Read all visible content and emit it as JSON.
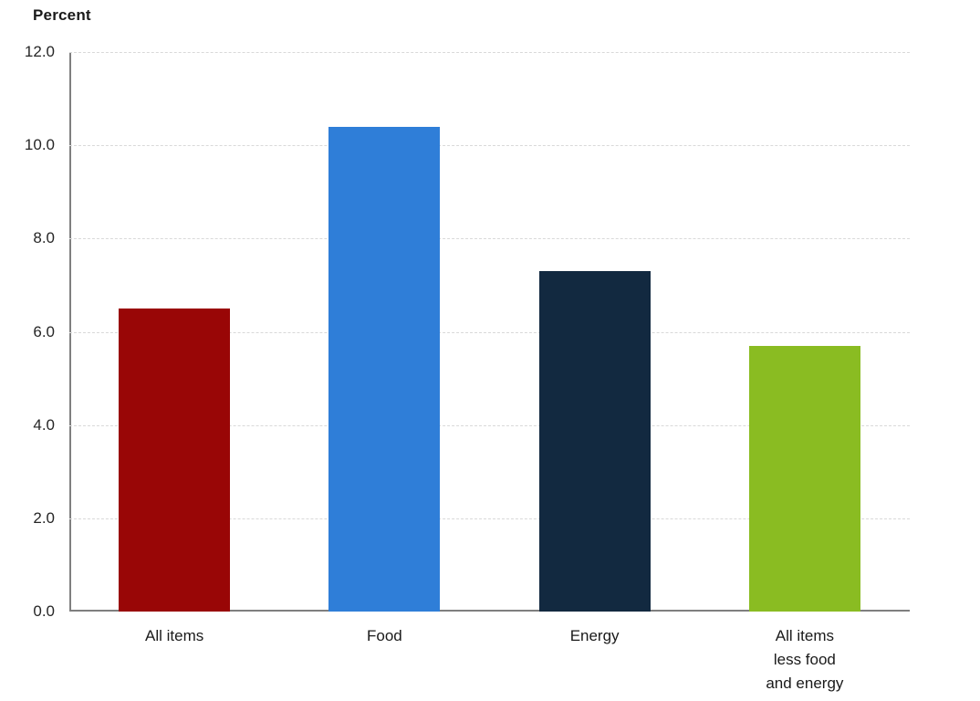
{
  "chart_data": {
    "type": "bar",
    "title": "Percent",
    "ylabel": "Percent",
    "xlabel": "",
    "categories": [
      "All items",
      "Food",
      "Energy",
      "All items\nless food\nand energy"
    ],
    "category_ids": [
      "all-items",
      "food",
      "energy",
      "all-items-less-food-and-energy"
    ],
    "values": [
      6.5,
      10.4,
      7.3,
      5.7
    ],
    "bar_colors": [
      "#990606",
      "#2F7ED8",
      "#122940",
      "#8ABC22"
    ],
    "ylim": [
      0,
      12
    ],
    "ytick_step": 2,
    "ytick_labels": [
      "0.0",
      "2.0",
      "4.0",
      "6.0",
      "8.0",
      "10.0",
      "12.0"
    ],
    "grid": "horizontal-dashed",
    "gridline_color": "#d9d9d9",
    "axis_color": "#7f7f7f",
    "legend": "none"
  }
}
